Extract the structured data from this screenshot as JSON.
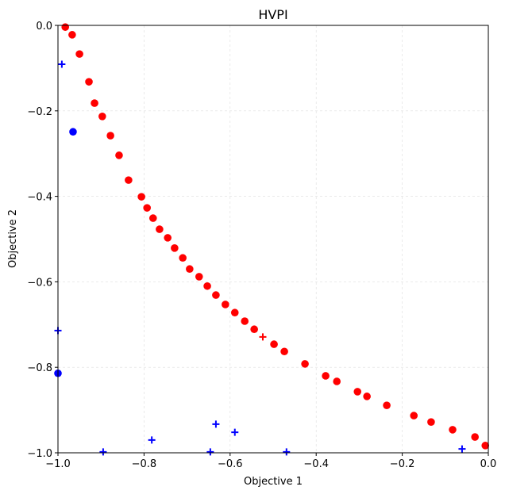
{
  "chart_data": {
    "type": "scatter",
    "title": "HVPI",
    "xlabel": "Objective 1",
    "ylabel": "Objective 2",
    "xlim": [
      -1.0,
      0.0
    ],
    "ylim": [
      -1.0,
      0.0
    ],
    "xticks": [
      "−1.0",
      "−0.8",
      "−0.6",
      "−0.4",
      "−0.2",
      "0.0"
    ],
    "xtick_values": [
      -1.0,
      -0.8,
      -0.6,
      -0.4,
      -0.2,
      0.0
    ],
    "yticks": [
      "0.0",
      "−0.2",
      "−0.4",
      "−0.6",
      "−0.8",
      "−1.0"
    ],
    "ytick_values": [
      0.0,
      -0.2,
      -0.4,
      -0.6,
      -0.8,
      -1.0
    ],
    "grid": true,
    "series": [
      {
        "color": "#ff0000",
        "marker": "circle",
        "points": [
          [
            -0.983,
            -0.004
          ],
          [
            -0.967,
            -0.022
          ],
          [
            -0.95,
            -0.067
          ],
          [
            -0.928,
            -0.132
          ],
          [
            -0.915,
            -0.182
          ],
          [
            -0.897,
            -0.213
          ],
          [
            -0.878,
            -0.258
          ],
          [
            -0.858,
            -0.304
          ],
          [
            -0.836,
            -0.362
          ],
          [
            -0.806,
            -0.401
          ],
          [
            -0.793,
            -0.427
          ],
          [
            -0.779,
            -0.451
          ],
          [
            -0.764,
            -0.477
          ],
          [
            -0.745,
            -0.497
          ],
          [
            -0.729,
            -0.521
          ],
          [
            -0.71,
            -0.544
          ],
          [
            -0.694,
            -0.57
          ],
          [
            -0.672,
            -0.588
          ],
          [
            -0.653,
            -0.61
          ],
          [
            -0.633,
            -0.631
          ],
          [
            -0.611,
            -0.653
          ],
          [
            -0.589,
            -0.672
          ],
          [
            -0.566,
            -0.692
          ],
          [
            -0.544,
            -0.711
          ],
          [
            -0.498,
            -0.746
          ],
          [
            -0.474,
            -0.763
          ],
          [
            -0.426,
            -0.792
          ],
          [
            -0.378,
            -0.82
          ],
          [
            -0.352,
            -0.833
          ],
          [
            -0.304,
            -0.857
          ],
          [
            -0.282,
            -0.868
          ],
          [
            -0.236,
            -0.889
          ],
          [
            -0.173,
            -0.913
          ],
          [
            -0.133,
            -0.928
          ],
          [
            -0.083,
            -0.946
          ],
          [
            -0.031,
            -0.963
          ],
          [
            -0.007,
            -0.983
          ]
        ]
      },
      {
        "color": "#ff0000",
        "marker": "plus",
        "points": [
          [
            -0.524,
            -0.729
          ]
        ]
      },
      {
        "color": "#0000ff",
        "marker": "circle",
        "points": [
          [
            -0.965,
            -0.249
          ],
          [
            -1.0,
            -0.814
          ]
        ]
      },
      {
        "color": "#0000ff",
        "marker": "plus",
        "points": [
          [
            -0.991,
            -0.091
          ],
          [
            -1.0,
            -0.714
          ],
          [
            -0.895,
            -0.998
          ],
          [
            -0.782,
            -0.97
          ],
          [
            -0.646,
            -0.998
          ],
          [
            -0.633,
            -0.933
          ],
          [
            -0.589,
            -0.952
          ],
          [
            -0.469,
            -0.998
          ],
          [
            -0.061,
            -0.991
          ]
        ]
      }
    ]
  }
}
